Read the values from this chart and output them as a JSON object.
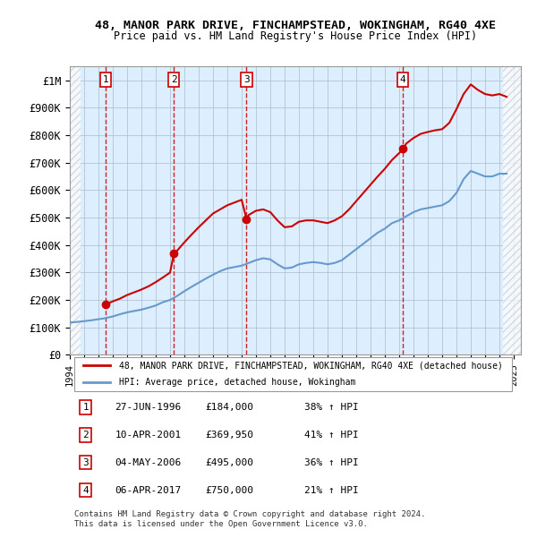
{
  "title1": "48, MANOR PARK DRIVE, FINCHAMPSTEAD, WOKINGHAM, RG40 4XE",
  "title2": "Price paid vs. HM Land Registry's House Price Index (HPI)",
  "legend_line1": "48, MANOR PARK DRIVE, FINCHAMPSTEAD, WOKINGHAM, RG40 4XE (detached house)",
  "legend_line2": "HPI: Average price, detached house, Wokingham",
  "footer": "Contains HM Land Registry data © Crown copyright and database right 2024.\nThis data is licensed under the Open Government Licence v3.0.",
  "transactions": [
    {
      "num": 1,
      "date": "27-JUN-1996",
      "year": 1996.49,
      "price": 184000,
      "pct": "38% ↑ HPI"
    },
    {
      "num": 2,
      "date": "10-APR-2001",
      "year": 2001.27,
      "price": 369950,
      "pct": "41% ↑ HPI"
    },
    {
      "num": 3,
      "date": "04-MAY-2006",
      "year": 2006.34,
      "price": 495000,
      "pct": "36% ↑ HPI"
    },
    {
      "num": 4,
      "date": "06-APR-2017",
      "year": 2017.26,
      "price": 750000,
      "pct": "21% ↑ HPI"
    }
  ],
  "hpi_years": [
    1994,
    1994.5,
    1995,
    1995.5,
    1996,
    1996.5,
    1997,
    1997.5,
    1998,
    1998.5,
    1999,
    1999.5,
    2000,
    2000.5,
    2001,
    2001.5,
    2002,
    2002.5,
    2003,
    2003.5,
    2004,
    2004.5,
    2005,
    2005.5,
    2006,
    2006.5,
    2007,
    2007.5,
    2008,
    2008.5,
    2009,
    2009.5,
    2010,
    2010.5,
    2011,
    2011.5,
    2012,
    2012.5,
    2013,
    2013.5,
    2014,
    2014.5,
    2015,
    2015.5,
    2016,
    2016.5,
    2017,
    2017.5,
    2018,
    2018.5,
    2019,
    2019.5,
    2020,
    2020.5,
    2021,
    2021.5,
    2022,
    2022.5,
    2023,
    2023.5,
    2024,
    2024.5
  ],
  "hpi_values": [
    118000,
    120000,
    123000,
    126000,
    130000,
    134000,
    140000,
    148000,
    155000,
    160000,
    165000,
    172000,
    180000,
    192000,
    200000,
    215000,
    232000,
    248000,
    263000,
    278000,
    292000,
    305000,
    315000,
    320000,
    325000,
    335000,
    345000,
    352000,
    348000,
    330000,
    315000,
    318000,
    330000,
    335000,
    338000,
    335000,
    330000,
    335000,
    345000,
    365000,
    385000,
    405000,
    425000,
    445000,
    460000,
    480000,
    490000,
    505000,
    520000,
    530000,
    535000,
    540000,
    545000,
    560000,
    590000,
    640000,
    670000,
    660000,
    650000,
    650000,
    660000,
    660000
  ],
  "prop_years": [
    1994,
    1994.5,
    1995,
    1995.5,
    1996,
    1996.49,
    1996.5,
    1997,
    1997.5,
    1998,
    1998.5,
    1999,
    1999.5,
    2000,
    2000.5,
    2001,
    2001.27,
    2001.5,
    2002,
    2002.5,
    2003,
    2003.5,
    2004,
    2004.5,
    2005,
    2005.5,
    2006,
    2006.34,
    2006.5,
    2007,
    2007.5,
    2008,
    2008.5,
    2009,
    2009.5,
    2010,
    2010.5,
    2011,
    2011.5,
    2012,
    2012.5,
    2013,
    2013.5,
    2014,
    2014.5,
    2015,
    2015.5,
    2016,
    2016.5,
    2017,
    2017.26,
    2017.5,
    2018,
    2018.5,
    2019,
    2019.5,
    2020,
    2020.5,
    2021,
    2021.5,
    2022,
    2022.5,
    2023,
    2023.5,
    2024,
    2024.5
  ],
  "prop_values": [
    null,
    null,
    null,
    null,
    null,
    184000,
    184000,
    195000,
    205000,
    218000,
    228000,
    238000,
    250000,
    265000,
    282000,
    300000,
    369950,
    380000,
    410000,
    438000,
    465000,
    490000,
    515000,
    530000,
    545000,
    555000,
    565000,
    495000,
    510000,
    525000,
    530000,
    520000,
    490000,
    465000,
    468000,
    485000,
    490000,
    490000,
    485000,
    480000,
    490000,
    505000,
    530000,
    560000,
    590000,
    620000,
    650000,
    678000,
    710000,
    735000,
    750000,
    770000,
    790000,
    805000,
    812000,
    818000,
    822000,
    845000,
    895000,
    950000,
    985000,
    965000,
    950000,
    945000,
    950000,
    940000
  ],
  "ylim": [
    0,
    1050000
  ],
  "xlim": [
    1994,
    2025.5
  ],
  "yticks": [
    0,
    100000,
    200000,
    300000,
    400000,
    500000,
    600000,
    700000,
    800000,
    900000,
    1000000
  ],
  "ytick_labels": [
    "£0",
    "£100K",
    "£200K",
    "£300K",
    "£400K",
    "£500K",
    "£600K",
    "£700K",
    "£800K",
    "£900K",
    "£1M"
  ],
  "xticks": [
    1994,
    1995,
    1996,
    1997,
    1998,
    1999,
    2000,
    2001,
    2002,
    2003,
    2004,
    2005,
    2006,
    2007,
    2008,
    2009,
    2010,
    2011,
    2012,
    2013,
    2014,
    2015,
    2016,
    2017,
    2018,
    2019,
    2020,
    2021,
    2022,
    2023,
    2024,
    2025
  ],
  "hpi_color": "#6699cc",
  "prop_color": "#cc0000",
  "hatch_color": "#cccccc",
  "bg_color": "#ddeeff",
  "grid_color": "#aabbcc",
  "marker_color": "#cc0000",
  "vline_color": "#cc0000",
  "box_color": "#cc0000",
  "table_rows": [
    [
      "1",
      "27-JUN-1996",
      "£184,000",
      "38% ↑ HPI"
    ],
    [
      "2",
      "10-APR-2001",
      "£369,950",
      "41% ↑ HPI"
    ],
    [
      "3",
      "04-MAY-2006",
      "£495,000",
      "36% ↑ HPI"
    ],
    [
      "4",
      "06-APR-2017",
      "£750,000",
      "21% ↑ HPI"
    ]
  ]
}
